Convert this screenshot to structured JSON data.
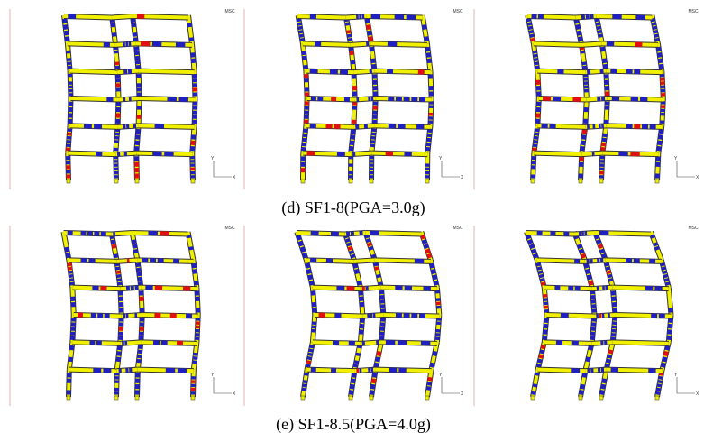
{
  "figure": {
    "rows": [
      {
        "caption": "(d) SF1-8(PGA=3.0g)"
      },
      {
        "caption": "(e) SF1-8.5(PGA=4.0g)"
      }
    ],
    "logo": "MSC",
    "axis_y": "Y",
    "axis_x": "X"
  }
}
